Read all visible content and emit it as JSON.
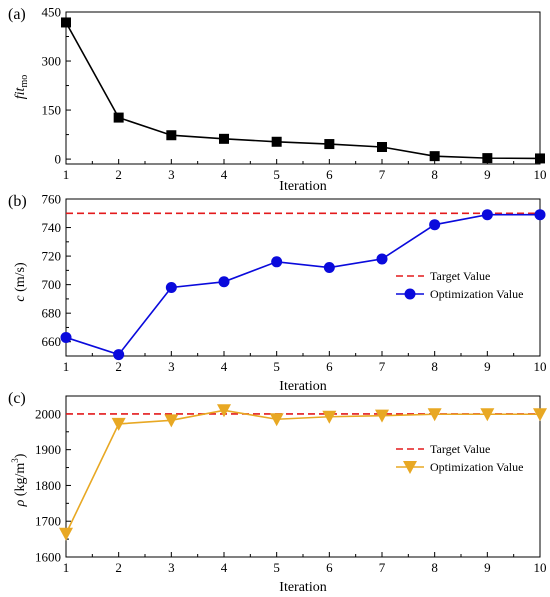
{
  "chart_data": [
    {
      "type": "line",
      "panel_label": "(a)",
      "xlabel": "Iteration",
      "ylabel_main": "fit",
      "ylabel_sub": "mo",
      "x": [
        1,
        2,
        3,
        4,
        5,
        6,
        7,
        8,
        9,
        10
      ],
      "xlim": [
        1,
        10
      ],
      "ylim": [
        -15,
        450
      ],
      "yticks": [
        0,
        150,
        300,
        450
      ],
      "xticks": [
        "1",
        "2",
        "3",
        "4",
        "5",
        "6",
        "7",
        "8",
        "9",
        "10"
      ],
      "series": [
        {
          "values": [
            418,
            127,
            73,
            62,
            53,
            46,
            37,
            9,
            3,
            2
          ],
          "color": "#000000",
          "marker": "square"
        }
      ]
    },
    {
      "type": "line",
      "panel_label": "(b)",
      "xlabel": "Iteration",
      "ylabel_main": "c",
      "ylabel_unit": " (m/s)",
      "x": [
        1,
        2,
        3,
        4,
        5,
        6,
        7,
        8,
        9,
        10
      ],
      "xlim": [
        1,
        10
      ],
      "ylim": [
        650,
        760
      ],
      "yticks": [
        660,
        680,
        700,
        720,
        740,
        760
      ],
      "xticks": [
        "1",
        "2",
        "3",
        "4",
        "5",
        "6",
        "7",
        "8",
        "9",
        "10"
      ],
      "legend_position": "center-right",
      "target": {
        "name": "Target Value",
        "value": 750,
        "color": "#e31a1c"
      },
      "series": [
        {
          "name": "Optimization Value",
          "values": [
            663,
            651,
            698,
            702,
            716,
            712,
            718,
            742,
            749,
            749
          ],
          "color": "#0a0adc",
          "marker": "circle"
        }
      ]
    },
    {
      "type": "line",
      "panel_label": "(c)",
      "xlabel": "Iteration",
      "ylabel_main": "ρ",
      "ylabel_unit": " (kg/m",
      "ylabel_sup": "3",
      "ylabel_close": ")",
      "x": [
        1,
        2,
        3,
        4,
        5,
        6,
        7,
        8,
        9,
        10
      ],
      "xlim": [
        1,
        10
      ],
      "ylim": [
        1600,
        2050
      ],
      "yticks": [
        1600,
        1700,
        1800,
        1900,
        2000
      ],
      "xticks": [
        "1",
        "2",
        "3",
        "4",
        "5",
        "6",
        "7",
        "8",
        "9",
        "10"
      ],
      "legend_position": "center-right",
      "target": {
        "name": "Target Value",
        "value": 2000,
        "color": "#e31a1c"
      },
      "series": [
        {
          "name": "Optimization Value",
          "values": [
            1665,
            1972,
            1982,
            2010,
            1985,
            1992,
            1995,
            1999,
            1999,
            1999
          ],
          "color": "#e8a823",
          "marker": "triangle-down"
        }
      ]
    }
  ]
}
